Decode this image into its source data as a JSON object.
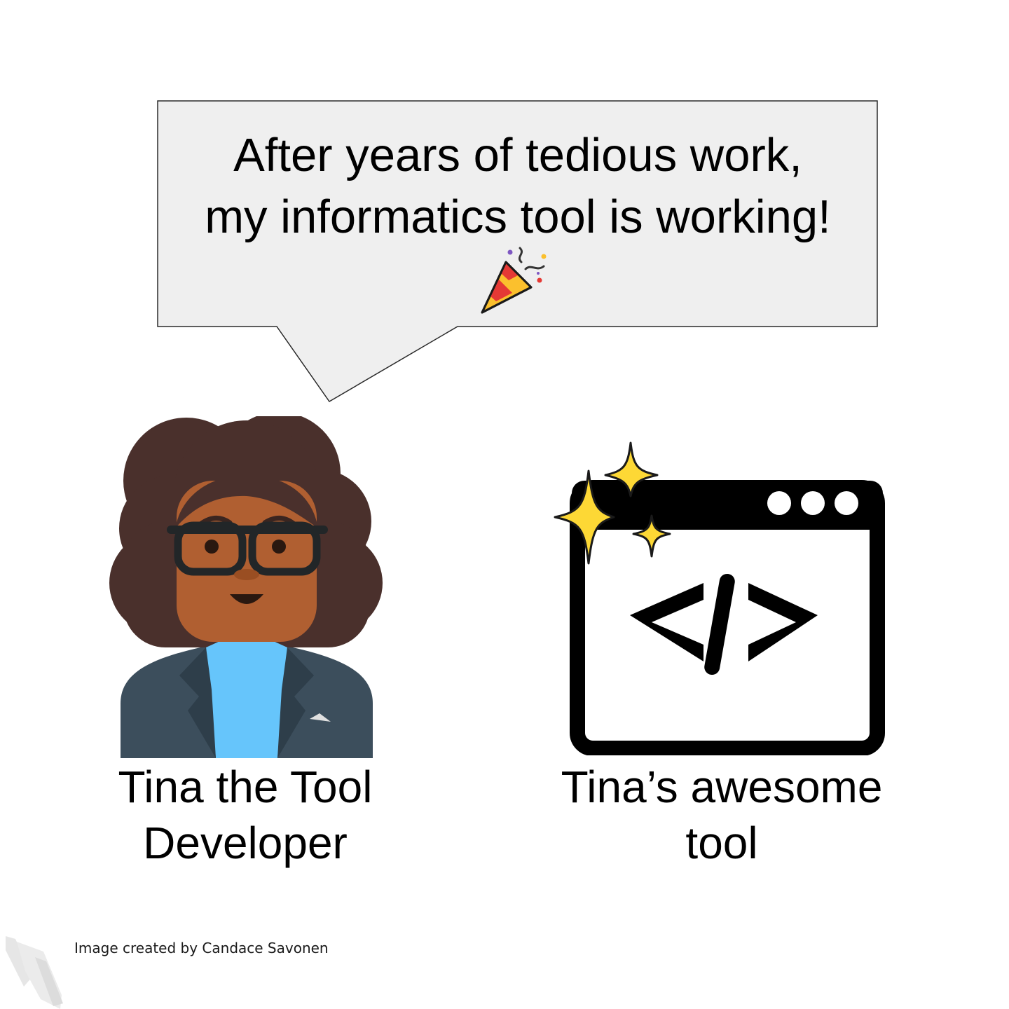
{
  "speech_bubble": {
    "lines": [
      "After years of tedious work,",
      "my informatics tool is working!"
    ],
    "emoji_icon": "party-popper-icon",
    "fill_color": "#efefef"
  },
  "characters": {
    "developer": {
      "icon": "developer-avatar-icon",
      "label_lines": [
        "Tina the Tool",
        "Developer"
      ]
    },
    "tool": {
      "icon": "code-window-icon",
      "sparkles_icon": "sparkles-icon",
      "code_symbol": "</>",
      "label_lines": [
        "Tina’s awesome",
        "tool"
      ]
    }
  },
  "footer": {
    "credit": "Image created by Candace Savonen",
    "logo_icon": "stripe-logo-icon"
  },
  "colors": {
    "hair": "#4a302c",
    "skin": "#b05f31",
    "jacket": "#3c4e5c",
    "shirt": "#66c5fb",
    "sparkle": "#fdd835"
  }
}
